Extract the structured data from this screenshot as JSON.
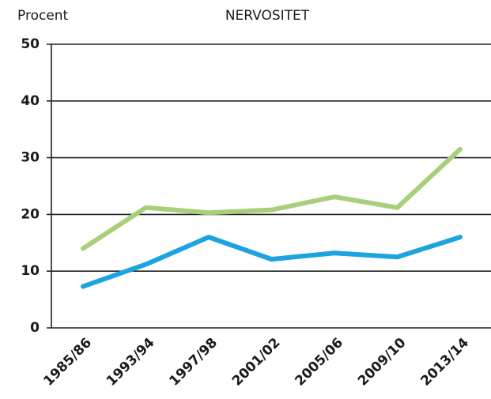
{
  "chart_data": {
    "type": "line",
    "title": "NERVOSITET",
    "y_label": "Procent",
    "categories": [
      "1985/86",
      "1993/94",
      "1997/98",
      "2001/02",
      "2005/06",
      "2009/10",
      "2013/14"
    ],
    "series": [
      {
        "color": "#a8d07a",
        "values": [
          14,
          21.2,
          20.3,
          20.8,
          23.1,
          21.2,
          31.5
        ]
      },
      {
        "color": "#1ca3e0",
        "values": [
          7.3,
          11.2,
          16,
          12.1,
          13.2,
          12.5,
          16
        ]
      }
    ],
    "ylim": [
      0,
      50
    ],
    "yticks": [
      0,
      10,
      20,
      30,
      40,
      50
    ],
    "grid": true
  }
}
